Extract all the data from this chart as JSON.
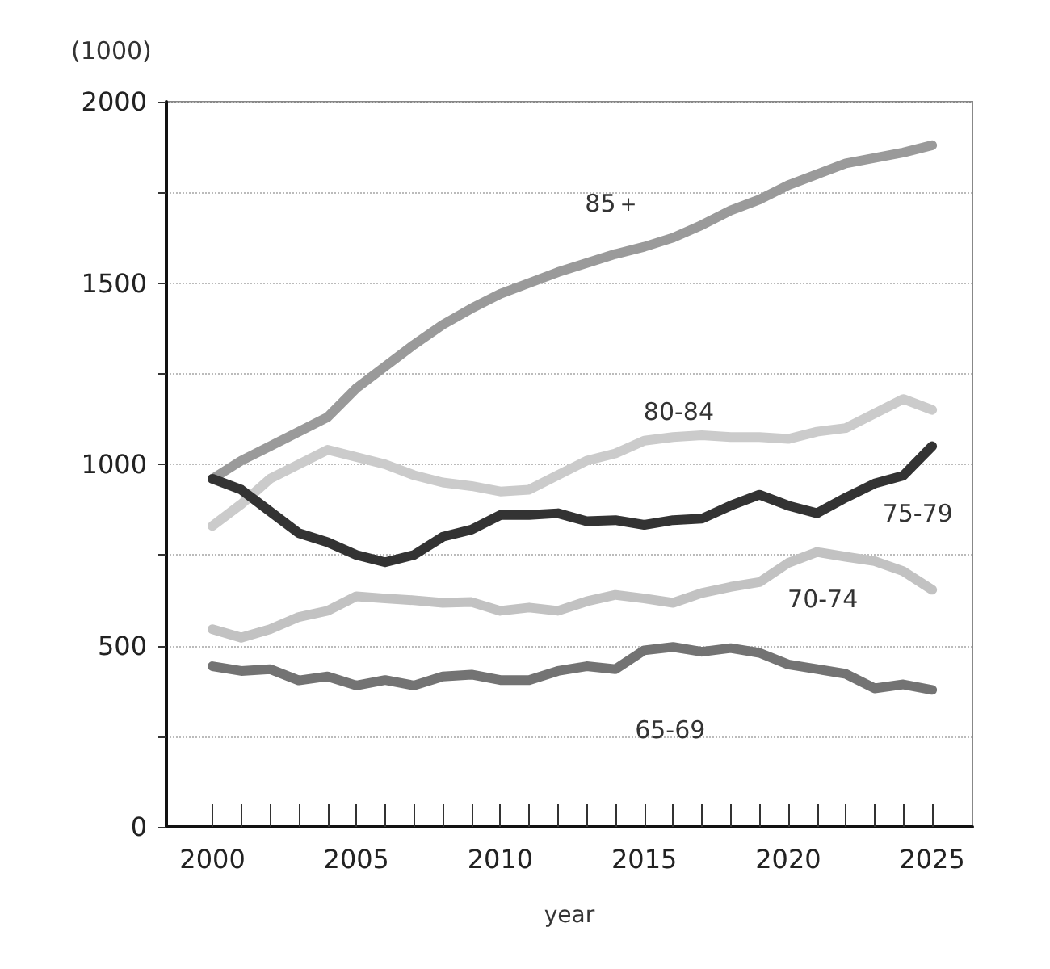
{
  "chart_data": {
    "type": "line",
    "ylabel": "(1000)",
    "xlabel": "year",
    "x": [
      2000,
      2001,
      2002,
      2003,
      2004,
      2005,
      2006,
      2007,
      2008,
      2009,
      2010,
      2011,
      2012,
      2013,
      2014,
      2015,
      2016,
      2017,
      2018,
      2019,
      2020,
      2021,
      2022,
      2023,
      2024,
      2025
    ],
    "series": [
      {
        "name": "85＋",
        "color": "#9a9a9a",
        "values": [
          960,
          1010,
          1050,
          1090,
          1130,
          1210,
          1270,
          1330,
          1385,
          1430,
          1470,
          1500,
          1530,
          1555,
          1580,
          1600,
          1625,
          1660,
          1700,
          1730,
          1770,
          1800,
          1830,
          1845,
          1860,
          1880
        ]
      },
      {
        "name": "80-84",
        "color": "#cbcbcb",
        "values": [
          830,
          890,
          960,
          1000,
          1040,
          1020,
          1000,
          970,
          950,
          940,
          925,
          930,
          970,
          1010,
          1030,
          1065,
          1075,
          1080,
          1075,
          1075,
          1070,
          1090,
          1100,
          1140,
          1180,
          1150
        ]
      },
      {
        "name": "75-79",
        "color": "#333333",
        "values": [
          960,
          930,
          870,
          810,
          785,
          750,
          730,
          750,
          800,
          820,
          860,
          860,
          865,
          843,
          846,
          833,
          846,
          850,
          886,
          916,
          886,
          865,
          908,
          947,
          969,
          1050
        ]
      },
      {
        "name": "70-74",
        "color": "#c2c2c2",
        "values": [
          545,
          522,
          545,
          579,
          596,
          636,
          630,
          625,
          618,
          620,
          596,
          605,
          596,
          622,
          640,
          630,
          618,
          645,
          662,
          675,
          728,
          758,
          745,
          733,
          705,
          654
        ]
      },
      {
        "name": "65-69",
        "color": "#737373",
        "values": [
          443,
          430,
          435,
          404,
          415,
          390,
          405,
          390,
          415,
          420,
          405,
          405,
          430,
          443,
          435,
          487,
          496,
          483,
          493,
          480,
          448,
          435,
          422,
          382,
          393,
          378
        ]
      }
    ],
    "xlim": [
      1998.4,
      2026.4
    ],
    "xticks": [
      2000,
      {
        "value": 2001,
        "label": null
      },
      {
        "value": 2002,
        "label": null
      },
      {
        "value": 2003,
        "label": null
      },
      {
        "value": 2004,
        "label": null
      },
      2005,
      {
        "value": 2006,
        "label": null
      },
      {
        "value": 2007,
        "label": null
      },
      {
        "value": 2008,
        "label": null
      },
      {
        "value": 2009,
        "label": null
      },
      2010,
      {
        "value": 2011,
        "label": null
      },
      {
        "value": 2012,
        "label": null
      },
      {
        "value": 2013,
        "label": null
      },
      {
        "value": 2014,
        "label": null
      },
      2015,
      {
        "value": 2016,
        "label": null
      },
      {
        "value": 2017,
        "label": null
      },
      {
        "value": 2018,
        "label": null
      },
      {
        "value": 2019,
        "label": null
      },
      2020,
      {
        "value": 2021,
        "label": null
      },
      {
        "value": 2022,
        "label": null
      },
      {
        "value": 2023,
        "label": null
      },
      {
        "value": 2024,
        "label": null
      },
      2025
    ],
    "ylim": [
      0,
      2000
    ],
    "yticks": [
      0,
      {
        "value": 250,
        "label": null
      },
      500,
      {
        "value": 750,
        "label": null
      },
      1000,
      {
        "value": 1250,
        "label": null
      },
      1500,
      {
        "value": 1750,
        "label": null
      },
      2000
    ],
    "grid": "y",
    "legend": false,
    "marker": "none",
    "line_style": "solid"
  }
}
